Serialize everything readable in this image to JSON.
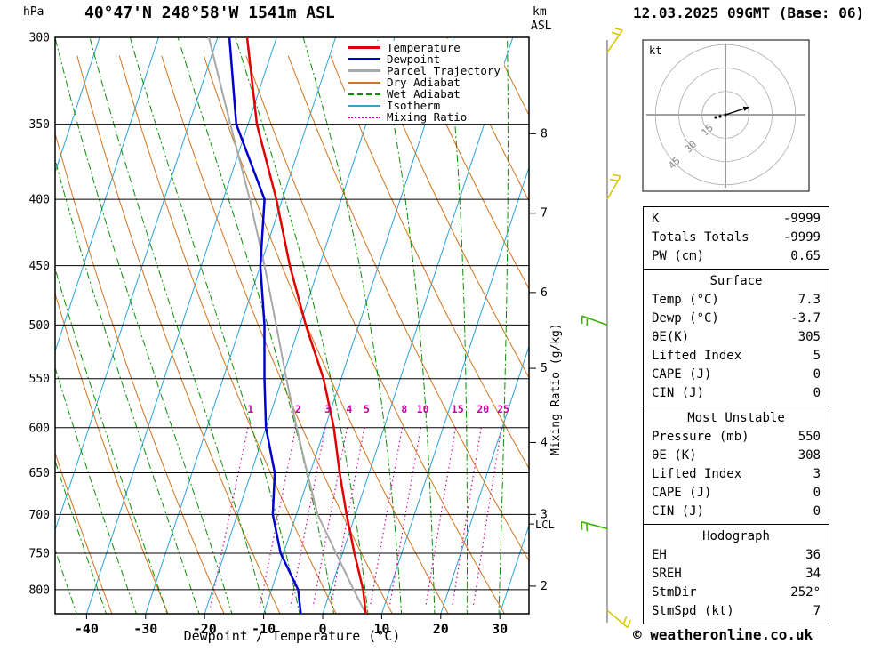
{
  "header": {
    "pressure_unit": "hPa",
    "title": "40°47'N 248°58'W 1541m ASL",
    "km": "km",
    "asl": "ASL",
    "datetime": "12.03.2025 09GMT (Base: 06)"
  },
  "legend": {
    "items": [
      {
        "label": "Temperature",
        "color": "#e00000",
        "style": "solid",
        "lw": 3
      },
      {
        "label": "Dewpoint",
        "color": "#0000cd",
        "style": "solid",
        "lw": 3
      },
      {
        "label": "Parcel Trajectory",
        "color": "#a8a8a8",
        "style": "solid",
        "lw": 3
      },
      {
        "label": "Dry Adiabat",
        "color": "#d2741e",
        "style": "solid",
        "lw": 2
      },
      {
        "label": "Wet Adiabat",
        "color": "#089000",
        "style": "dashed",
        "lw": 2
      },
      {
        "label": "Isotherm",
        "color": "#2aa3d8",
        "style": "solid",
        "lw": 2
      },
      {
        "label": "Mixing Ratio",
        "color": "#cc00a0",
        "style": "dotted",
        "lw": 2
      }
    ]
  },
  "axes": {
    "xlabel": "Dewpoint / Temperature (°C)",
    "right_axis_label": "Mixing Ratio (g/kg)",
    "lcl": "LCL",
    "pressure_ticks": [
      300,
      350,
      400,
      450,
      500,
      550,
      600,
      650,
      700,
      750,
      800
    ],
    "temp_ticks": [
      -40,
      -30,
      -20,
      -10,
      0,
      10,
      20,
      30
    ],
    "km_ticks": [
      {
        "km": 8,
        "p": 356
      },
      {
        "km": 7,
        "p": 410
      },
      {
        "km": 6,
        "p": 472
      },
      {
        "km": 5,
        "p": 540
      },
      {
        "km": 4,
        "p": 616
      },
      {
        "km": 3,
        "p": 700
      },
      {
        "km": 2,
        "p": 795
      }
    ],
    "lcl_pressure": 712
  },
  "chart_data": {
    "type": "line",
    "title": "Skew-T log-P sounding 40°47'N 248°58'W 1541m ASL, 12.03.2025 09GMT (Base: 06)",
    "x_axis": "Dewpoint / Temperature (°C)",
    "y_axis": "Pressure (hPa), logarithmic",
    "pressure_range_hpa": [
      300,
      835
    ],
    "temp_axis_range_c": [
      -45,
      35
    ],
    "isotherm_step_c": 10,
    "dry_adiabat_step_k": 10,
    "wet_adiabat_step_c": 5,
    "mixing_ratio_lines_gkg": [
      1,
      2,
      3,
      4,
      5,
      8,
      10,
      15,
      20,
      25
    ],
    "series": [
      {
        "name": "Temperature",
        "color": "#e00000",
        "points_p_t": [
          [
            835,
            7.3
          ],
          [
            800,
            5.5
          ],
          [
            750,
            2.0
          ],
          [
            700,
            -1.5
          ],
          [
            650,
            -5.0
          ],
          [
            600,
            -8.5
          ],
          [
            550,
            -13.0
          ],
          [
            500,
            -19.0
          ],
          [
            450,
            -25.0
          ],
          [
            400,
            -31.0
          ],
          [
            350,
            -38.5
          ],
          [
            300,
            -45.0
          ]
        ]
      },
      {
        "name": "Dewpoint",
        "color": "#0000cd",
        "points_p_t": [
          [
            835,
            -3.7
          ],
          [
            800,
            -5.5
          ],
          [
            750,
            -10.5
          ],
          [
            700,
            -14.0
          ],
          [
            650,
            -16.0
          ],
          [
            600,
            -20.0
          ],
          [
            550,
            -23.0
          ],
          [
            500,
            -26.0
          ],
          [
            450,
            -30.0
          ],
          [
            400,
            -33.0
          ],
          [
            350,
            -42.0
          ],
          [
            300,
            -48.0
          ]
        ]
      },
      {
        "name": "Parcel Trajectory",
        "color": "#a8a8a8",
        "points_p_t": [
          [
            835,
            7.3
          ],
          [
            800,
            3.9
          ],
          [
            750,
            -1.1
          ],
          [
            700,
            -6.4
          ],
          [
            650,
            -10.5
          ],
          [
            600,
            -14.8
          ],
          [
            550,
            -19.3
          ],
          [
            500,
            -24.0
          ],
          [
            450,
            -29.3
          ],
          [
            400,
            -35.5
          ],
          [
            350,
            -43.0
          ],
          [
            300,
            -51.5
          ]
        ]
      }
    ]
  },
  "hodograph": {
    "unit_label": "kt",
    "rings_kt": [
      15,
      30,
      45
    ],
    "storm_motion": {
      "dir_deg": 252,
      "speed_kt": 7
    }
  },
  "winds": {
    "barbs": [
      {
        "p": 308,
        "color": "#d8c800",
        "angle": -55
      },
      {
        "p": 400,
        "color": "#d8c800",
        "angle": -60
      },
      {
        "p": 500,
        "color": "#3cb400",
        "angle": 200
      },
      {
        "p": 718,
        "color": "#3cb400",
        "angle": 195
      },
      {
        "p": 830,
        "color": "#d8c800",
        "angle": 40
      }
    ]
  },
  "stats": {
    "indices": {
      "rows": [
        {
          "label": "K",
          "value": "-9999"
        },
        {
          "label": "Totals Totals",
          "value": "-9999"
        },
        {
          "label": "PW (cm)",
          "value": "0.65"
        }
      ]
    },
    "surface": {
      "title": "Surface",
      "rows": [
        {
          "label": "Temp (°C)",
          "value": "7.3"
        },
        {
          "label": "Dewp (°C)",
          "value": "-3.7"
        },
        {
          "label": "θE(K)",
          "value": "305"
        },
        {
          "label": "Lifted Index",
          "value": "5"
        },
        {
          "label": "CAPE (J)",
          "value": "0"
        },
        {
          "label": "CIN (J)",
          "value": "0"
        }
      ]
    },
    "most_unstable": {
      "title": "Most Unstable",
      "rows": [
        {
          "label": "Pressure (mb)",
          "value": "550"
        },
        {
          "label": "θE (K)",
          "value": "308"
        },
        {
          "label": "Lifted Index",
          "value": "3"
        },
        {
          "label": "CAPE (J)",
          "value": "0"
        },
        {
          "label": "CIN (J)",
          "value": "0"
        }
      ]
    },
    "hodograph": {
      "title": "Hodograph",
      "rows": [
        {
          "label": "EH",
          "value": "36"
        },
        {
          "label": "SREH",
          "value": "34"
        },
        {
          "label": "StmDir",
          "value": "252°"
        },
        {
          "label": "StmSpd (kt)",
          "value": "7"
        }
      ]
    }
  },
  "footer": {
    "credit": "© weatheronline.co.uk"
  }
}
